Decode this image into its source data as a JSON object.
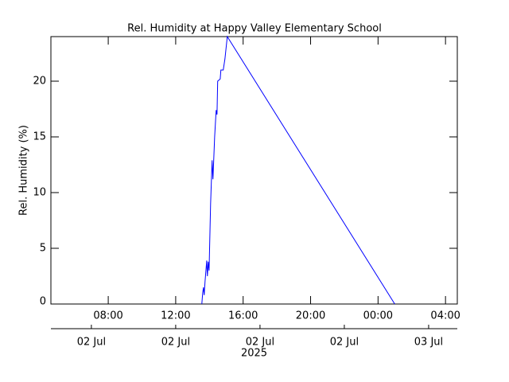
{
  "chart_data": {
    "type": "line",
    "title": "Rel. Humidity at Happy Valley Elementary School",
    "ylabel": "Rel. Humidity (%)",
    "x": [
      13.55,
      13.6,
      13.65,
      13.69,
      13.74,
      13.84,
      13.88,
      13.93,
      13.98,
      14.07,
      14.16,
      14.21,
      14.31,
      14.4,
      14.45,
      14.49,
      14.64,
      14.68,
      14.82,
      14.92,
      15.06,
      24.99
    ],
    "series": [
      {
        "name": "Rel. Humidity",
        "color": "#0000ff",
        "values": [
          0,
          1,
          1.5,
          0.8,
          2,
          3.9,
          2.5,
          3.8,
          3,
          9,
          12.9,
          11.2,
          15,
          17.4,
          17,
          20,
          20.2,
          21,
          21,
          22,
          24,
          0
        ]
      }
    ],
    "xlim": [
      4.6,
      28.7
    ],
    "xticks": [
      {
        "value": 8,
        "label": "08:00"
      },
      {
        "value": 12,
        "label": "12:00"
      },
      {
        "value": 16,
        "label": "16:00"
      },
      {
        "value": 20,
        "label": "20:00"
      },
      {
        "value": 24,
        "label": "00:00"
      },
      {
        "value": 28,
        "label": "04:00"
      }
    ],
    "date_ticks": [
      {
        "value": 7,
        "label": "02 Jul"
      },
      {
        "value": 12,
        "label": "02 Jul"
      },
      {
        "value": 17,
        "label": "02 Jul"
      },
      {
        "value": 22,
        "label": "02 Jul"
      },
      {
        "value": 27,
        "label": "03 Jul"
      }
    ],
    "year": "2025",
    "ylim": [
      0,
      24
    ],
    "yticks": [
      0,
      5,
      10,
      15,
      20
    ]
  }
}
